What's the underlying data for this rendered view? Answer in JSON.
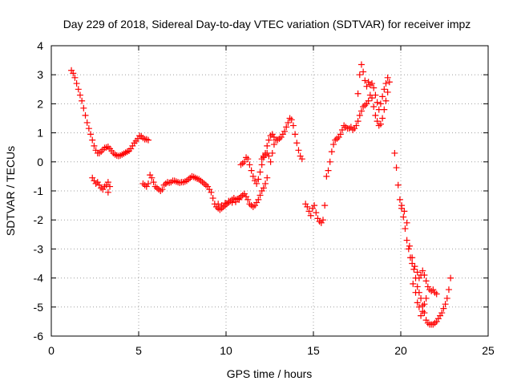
{
  "chart_data": {
    "type": "scatter",
    "title": "Day 229 of 2018, Sidereal Day-to-day VTEC variation (SDTVAR) for receiver impz",
    "xlabel": "GPS time / hours",
    "ylabel": "SDTVAR / TECUs",
    "xlim": [
      0,
      25
    ],
    "ylim": [
      -6,
      4
    ],
    "xticks": [
      "0",
      "5",
      "10",
      "15",
      "20",
      "25"
    ],
    "yticks": [
      "-6",
      "-5",
      "-4",
      "-3",
      "-2",
      "-1",
      "0",
      "1",
      "2",
      "3",
      "4"
    ],
    "grid": true,
    "legend": "none",
    "marker": "+",
    "marker_color": "#ff0000",
    "series": [
      {
        "values": [
          [
            1.15,
            3.15
          ],
          [
            1.25,
            3.05
          ],
          [
            1.35,
            2.9
          ],
          [
            1.45,
            2.7
          ],
          [
            1.55,
            2.5
          ],
          [
            1.65,
            2.3
          ],
          [
            1.75,
            2.1
          ],
          [
            1.85,
            1.85
          ],
          [
            1.95,
            1.6
          ],
          [
            2.05,
            1.35
          ],
          [
            2.15,
            1.15
          ],
          [
            2.25,
            0.95
          ],
          [
            2.35,
            0.75
          ],
          [
            2.45,
            0.55
          ],
          [
            2.55,
            0.4
          ],
          [
            2.65,
            0.3
          ],
          [
            2.75,
            0.3
          ],
          [
            2.85,
            0.35
          ],
          [
            2.95,
            0.42
          ],
          [
            3.05,
            0.48
          ],
          [
            3.15,
            0.5
          ],
          [
            3.25,
            0.52
          ],
          [
            3.35,
            0.45
          ],
          [
            3.45,
            0.38
          ],
          [
            3.55,
            0.3
          ],
          [
            3.65,
            0.25
          ],
          [
            3.75,
            0.22
          ],
          [
            3.85,
            0.2
          ],
          [
            3.95,
            0.22
          ],
          [
            4.05,
            0.25
          ],
          [
            4.15,
            0.28
          ],
          [
            4.25,
            0.32
          ],
          [
            4.35,
            0.35
          ],
          [
            4.45,
            0.38
          ],
          [
            4.55,
            0.45
          ],
          [
            4.65,
            0.55
          ],
          [
            4.75,
            0.65
          ],
          [
            4.85,
            0.72
          ],
          [
            4.95,
            0.8
          ],
          [
            5.05,
            0.9
          ],
          [
            5.15,
            0.88
          ],
          [
            5.25,
            0.82
          ],
          [
            5.35,
            0.78
          ],
          [
            5.45,
            0.78
          ],
          [
            5.55,
            0.75
          ],
          [
            2.35,
            -0.55
          ],
          [
            2.45,
            -0.65
          ],
          [
            2.55,
            -0.75
          ],
          [
            2.65,
            -0.7
          ],
          [
            2.75,
            -0.8
          ],
          [
            2.85,
            -0.9
          ],
          [
            2.95,
            -0.95
          ],
          [
            3.05,
            -0.85
          ],
          [
            3.15,
            -0.8
          ],
          [
            3.25,
            -0.7
          ],
          [
            3.35,
            -0.85
          ],
          [
            3.25,
            -1.05
          ],
          [
            5.25,
            -0.75
          ],
          [
            5.35,
            -0.8
          ],
          [
            5.45,
            -0.85
          ],
          [
            5.55,
            -0.75
          ],
          [
            5.65,
            -0.45
          ],
          [
            5.75,
            -0.55
          ],
          [
            5.85,
            -0.7
          ],
          [
            5.95,
            -0.85
          ],
          [
            6.05,
            -0.9
          ],
          [
            6.15,
            -0.95
          ],
          [
            6.25,
            -1.0
          ],
          [
            6.35,
            -0.95
          ],
          [
            6.45,
            -0.8
          ],
          [
            6.55,
            -0.75
          ],
          [
            6.65,
            -0.7
          ],
          [
            6.75,
            -0.72
          ],
          [
            6.85,
            -0.7
          ],
          [
            6.95,
            -0.65
          ],
          [
            7.05,
            -0.65
          ],
          [
            7.15,
            -0.68
          ],
          [
            7.25,
            -0.7
          ],
          [
            7.35,
            -0.72
          ],
          [
            7.45,
            -0.7
          ],
          [
            7.55,
            -0.7
          ],
          [
            7.65,
            -0.68
          ],
          [
            7.75,
            -0.65
          ],
          [
            7.85,
            -0.6
          ],
          [
            7.95,
            -0.55
          ],
          [
            8.05,
            -0.5
          ],
          [
            8.15,
            -0.52
          ],
          [
            8.25,
            -0.55
          ],
          [
            8.35,
            -0.58
          ],
          [
            8.45,
            -0.6
          ],
          [
            8.55,
            -0.65
          ],
          [
            8.65,
            -0.7
          ],
          [
            8.75,
            -0.75
          ],
          [
            8.85,
            -0.8
          ],
          [
            8.95,
            -0.85
          ],
          [
            9.05,
            -0.95
          ],
          [
            9.15,
            -1.05
          ],
          [
            9.25,
            -1.25
          ],
          [
            9.35,
            -1.45
          ],
          [
            9.45,
            -1.55
          ],
          [
            9.55,
            -1.6
          ],
          [
            9.65,
            -1.65
          ],
          [
            9.75,
            -1.6
          ],
          [
            9.85,
            -1.55
          ],
          [
            9.95,
            -1.5
          ],
          [
            10.05,
            -1.45
          ],
          [
            10.15,
            -1.4
          ],
          [
            10.25,
            -1.35
          ],
          [
            10.35,
            -1.3
          ],
          [
            10.45,
            -1.25
          ],
          [
            10.55,
            -1.3
          ],
          [
            10.65,
            -1.28
          ],
          [
            10.75,
            -1.25
          ],
          [
            10.85,
            -1.2
          ],
          [
            10.95,
            -1.15
          ],
          [
            11.05,
            -1.1
          ],
          [
            11.15,
            -1.2
          ],
          [
            11.25,
            -1.3
          ],
          [
            11.35,
            -1.45
          ],
          [
            11.45,
            -1.5
          ],
          [
            11.55,
            -1.55
          ],
          [
            11.65,
            -1.5
          ],
          [
            11.75,
            -1.4
          ],
          [
            11.85,
            -1.3
          ],
          [
            11.95,
            -1.15
          ],
          [
            12.05,
            -1.0
          ],
          [
            12.15,
            -0.9
          ],
          [
            12.25,
            -0.75
          ],
          [
            12.35,
            -0.55
          ],
          [
            9.55,
            -1.45
          ],
          [
            9.75,
            -1.5
          ],
          [
            9.95,
            -1.42
          ],
          [
            10.15,
            -1.35
          ],
          [
            10.35,
            -1.4
          ],
          [
            10.55,
            -1.38
          ],
          [
            10.75,
            -1.3
          ],
          [
            10.85,
            -0.1
          ],
          [
            10.95,
            -0.05
          ],
          [
            11.05,
            0.0
          ],
          [
            11.15,
            0.15
          ],
          [
            11.25,
            0.1
          ],
          [
            11.35,
            -0.1
          ],
          [
            11.45,
            -0.3
          ],
          [
            11.55,
            -0.5
          ],
          [
            11.65,
            -0.65
          ],
          [
            11.75,
            -0.75
          ],
          [
            11.85,
            -0.6
          ],
          [
            11.95,
            -0.35
          ],
          [
            12.05,
            -0.1
          ],
          [
            12.15,
            0.15
          ],
          [
            12.25,
            0.3
          ],
          [
            12.35,
            0.55
          ],
          [
            12.45,
            0.75
          ],
          [
            12.55,
            0.9
          ],
          [
            12.65,
            0.95
          ],
          [
            12.75,
            0.85
          ],
          [
            12.85,
            0.75
          ],
          [
            12.95,
            0.75
          ],
          [
            13.05,
            0.8
          ],
          [
            13.15,
            0.85
          ],
          [
            13.25,
            0.95
          ],
          [
            13.35,
            1.05
          ],
          [
            13.45,
            1.2
          ],
          [
            13.55,
            1.35
          ],
          [
            13.65,
            1.5
          ],
          [
            13.75,
            1.45
          ],
          [
            13.85,
            1.25
          ],
          [
            13.95,
            0.95
          ],
          [
            14.05,
            0.65
          ],
          [
            14.15,
            0.4
          ],
          [
            14.25,
            0.2
          ],
          [
            14.35,
            0.1
          ],
          [
            12.05,
            0.1
          ],
          [
            12.15,
            0.2
          ],
          [
            12.25,
            0.25
          ],
          [
            12.35,
            0.3
          ],
          [
            12.45,
            0.2
          ],
          [
            12.55,
            0.0
          ],
          [
            12.65,
            0.3
          ],
          [
            12.75,
            0.6
          ],
          [
            14.55,
            -1.45
          ],
          [
            14.65,
            -1.55
          ],
          [
            14.75,
            -1.7
          ],
          [
            14.85,
            -1.85
          ],
          [
            14.95,
            -1.6
          ],
          [
            15.05,
            -1.5
          ],
          [
            15.15,
            -1.75
          ],
          [
            15.25,
            -1.95
          ],
          [
            15.35,
            -2.05
          ],
          [
            15.45,
            -2.1
          ],
          [
            15.55,
            -2.0
          ],
          [
            15.65,
            -1.5
          ],
          [
            15.75,
            -0.5
          ],
          [
            15.85,
            -0.3
          ],
          [
            15.95,
            0.0
          ],
          [
            16.05,
            0.35
          ],
          [
            16.15,
            0.6
          ],
          [
            16.25,
            0.75
          ],
          [
            16.35,
            0.8
          ],
          [
            16.45,
            0.85
          ],
          [
            16.55,
            0.95
          ],
          [
            16.65,
            1.1
          ],
          [
            16.75,
            1.25
          ],
          [
            16.85,
            1.2
          ],
          [
            16.95,
            1.15
          ],
          [
            17.05,
            1.15
          ],
          [
            17.15,
            1.2
          ],
          [
            17.25,
            1.1
          ],
          [
            17.35,
            1.15
          ],
          [
            17.45,
            1.25
          ],
          [
            17.55,
            1.4
          ],
          [
            17.65,
            1.6
          ],
          [
            17.75,
            1.75
          ],
          [
            17.85,
            1.9
          ],
          [
            17.95,
            1.95
          ],
          [
            18.05,
            2.0
          ],
          [
            18.15,
            2.1
          ],
          [
            18.25,
            2.3
          ],
          [
            18.35,
            2.2
          ],
          [
            18.45,
            1.9
          ],
          [
            18.55,
            1.6
          ],
          [
            18.65,
            1.4
          ],
          [
            18.75,
            1.25
          ],
          [
            18.85,
            1.3
          ],
          [
            18.95,
            1.5
          ],
          [
            19.05,
            1.8
          ],
          [
            19.15,
            2.1
          ],
          [
            19.25,
            2.4
          ],
          [
            19.35,
            2.75
          ],
          [
            17.55,
            2.35
          ],
          [
            17.65,
            3.0
          ],
          [
            17.75,
            3.35
          ],
          [
            17.85,
            3.1
          ],
          [
            17.95,
            2.8
          ],
          [
            18.05,
            2.6
          ],
          [
            18.15,
            2.75
          ],
          [
            18.25,
            2.65
          ],
          [
            18.35,
            2.7
          ],
          [
            18.45,
            2.55
          ],
          [
            18.55,
            2.3
          ],
          [
            18.65,
            2.05
          ],
          [
            18.75,
            1.8
          ],
          [
            18.85,
            2.0
          ],
          [
            18.95,
            2.25
          ],
          [
            19.05,
            2.5
          ],
          [
            19.15,
            2.7
          ],
          [
            19.25,
            2.9
          ],
          [
            19.65,
            0.3
          ],
          [
            19.75,
            -0.2
          ],
          [
            19.85,
            -0.8
          ],
          [
            19.95,
            -1.3
          ],
          [
            20.05,
            -1.6
          ],
          [
            20.15,
            -1.9
          ],
          [
            20.25,
            -2.3
          ],
          [
            20.35,
            -2.7
          ],
          [
            20.45,
            -3.0
          ],
          [
            20.55,
            -3.3
          ],
          [
            20.65,
            -3.5
          ],
          [
            20.75,
            -3.7
          ],
          [
            20.85,
            -4.0
          ],
          [
            20.95,
            -4.3
          ],
          [
            21.05,
            -4.5
          ],
          [
            21.15,
            -4.7
          ],
          [
            21.25,
            -4.95
          ],
          [
            21.35,
            -5.2
          ],
          [
            21.45,
            -5.45
          ],
          [
            21.55,
            -5.55
          ],
          [
            21.65,
            -5.6
          ],
          [
            21.75,
            -5.6
          ],
          [
            21.85,
            -5.6
          ],
          [
            21.95,
            -5.55
          ],
          [
            22.05,
            -5.5
          ],
          [
            22.15,
            -5.4
          ],
          [
            22.25,
            -5.3
          ],
          [
            22.35,
            -5.2
          ],
          [
            22.45,
            -5.05
          ],
          [
            22.55,
            -4.9
          ],
          [
            22.65,
            -4.7
          ],
          [
            22.75,
            -4.4
          ],
          [
            22.85,
            -4.0
          ],
          [
            20.05,
            -1.5
          ],
          [
            20.2,
            -1.7
          ],
          [
            20.35,
            -2.1
          ],
          [
            20.5,
            -2.9
          ],
          [
            20.65,
            -3.3
          ],
          [
            20.8,
            -3.6
          ],
          [
            20.95,
            -3.8
          ],
          [
            21.05,
            -4.0
          ],
          [
            21.15,
            -3.9
          ],
          [
            21.25,
            -3.75
          ],
          [
            21.35,
            -3.9
          ],
          [
            21.45,
            -4.1
          ],
          [
            21.55,
            -4.3
          ],
          [
            21.65,
            -4.4
          ],
          [
            21.75,
            -4.45
          ],
          [
            21.85,
            -4.4
          ],
          [
            21.95,
            -4.5
          ],
          [
            22.05,
            -4.55
          ],
          [
            20.7,
            -4.2
          ],
          [
            20.85,
            -4.5
          ],
          [
            20.95,
            -4.85
          ],
          [
            21.05,
            -5.0
          ],
          [
            21.15,
            -5.3
          ],
          [
            21.25,
            -5.15
          ],
          [
            21.35,
            -4.9
          ],
          [
            21.45,
            -4.7
          ]
        ]
      }
    ]
  }
}
